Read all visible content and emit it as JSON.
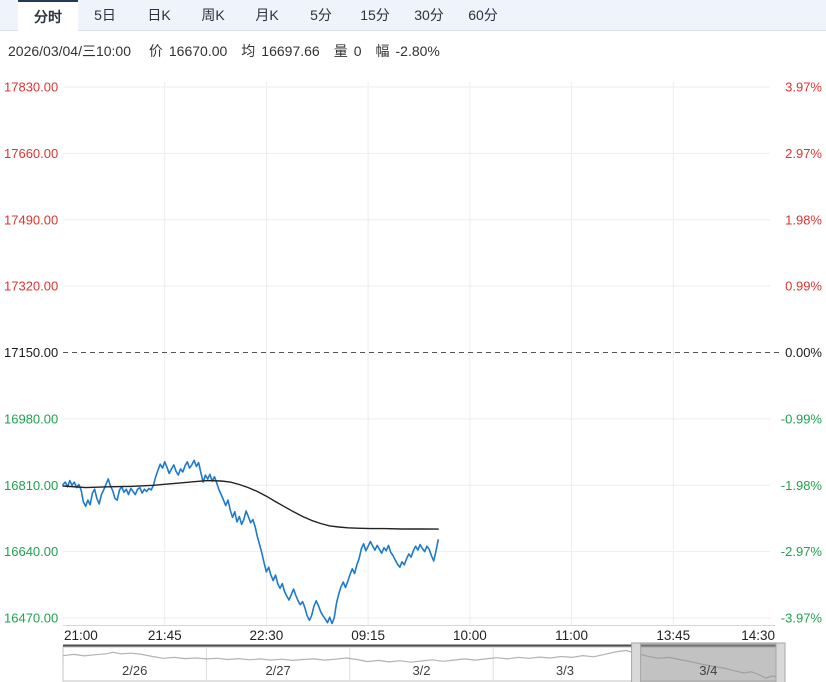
{
  "toolbar": {
    "tabs": [
      {
        "label": "分时",
        "active": true
      },
      {
        "label": "5日",
        "active": false
      },
      {
        "label": "日K",
        "active": false
      },
      {
        "label": "周K",
        "active": false
      },
      {
        "label": "月K",
        "active": false
      },
      {
        "label": "5分",
        "active": false
      },
      {
        "label": "15分",
        "active": false
      },
      {
        "label": "30分",
        "active": false
      },
      {
        "label": "60分",
        "active": false
      }
    ]
  },
  "status_bar": {
    "datetime": "2026/03/04/三10:00",
    "fields": [
      {
        "label": "价",
        "value": "16670.00"
      },
      {
        "label": "均",
        "value": "16697.66"
      },
      {
        "label": "量",
        "value": "0"
      },
      {
        "label": "幅",
        "value": "-2.80%"
      }
    ]
  },
  "chart_data": {
    "type": "line",
    "title": "分时 intraday price chart",
    "prev_close": 17150,
    "current": {
      "time": "10:00",
      "price": 16670.0,
      "avg": 16697.66,
      "volume": 0,
      "change_pct": "-2.80%"
    },
    "y_axis": {
      "price_values": [
        17830,
        17660,
        17490,
        17320,
        17150,
        16980,
        16810,
        16640,
        16470
      ],
      "price_labels": [
        "17830.00",
        "17660.00",
        "17490.00",
        "17320.00",
        "17150.00",
        "16980.00",
        "16810.00",
        "16640.00",
        "16470.00"
      ],
      "percent_labels": [
        "3.97%",
        "2.97%",
        "1.98%",
        "0.99%",
        "0.00%",
        "-0.99%",
        "-1.98%",
        "-2.97%",
        "-3.97%"
      ]
    },
    "x_axis": {
      "tick_labels": [
        "21:00",
        "21:45",
        "22:30",
        "09:15",
        "10:00",
        "11:00",
        "13:45",
        "14:30"
      ],
      "tick_minutes": [
        0,
        45,
        90,
        135,
        180,
        225,
        270,
        315
      ],
      "total_minutes": 315
    },
    "ylim": [
      16470,
      17830
    ],
    "grid": true,
    "colors": {
      "up": "#dd3431",
      "down": "#1fa24d",
      "neutral": "#1a1a1a",
      "price_line": "#1e7ac9",
      "avg_line": "#222222",
      "grid": "#ededf0",
      "dashed_midline": "#555555"
    },
    "series": [
      {
        "name": "price",
        "points": [
          [
            0,
            16812
          ],
          [
            1,
            16818
          ],
          [
            2,
            16806
          ],
          [
            3,
            16822
          ],
          [
            4,
            16810
          ],
          [
            5,
            16818
          ],
          [
            6,
            16804
          ],
          [
            7,
            16812
          ],
          [
            8,
            16798
          ],
          [
            9,
            16768
          ],
          [
            10,
            16756
          ],
          [
            11,
            16772
          ],
          [
            12,
            16760
          ],
          [
            13,
            16790
          ],
          [
            14,
            16800
          ],
          [
            15,
            16776
          ],
          [
            16,
            16762
          ],
          [
            17,
            16786
          ],
          [
            18,
            16798
          ],
          [
            19,
            16812
          ],
          [
            20,
            16826
          ],
          [
            21,
            16808
          ],
          [
            22,
            16796
          ],
          [
            23,
            16776
          ],
          [
            24,
            16772
          ],
          [
            25,
            16798
          ],
          [
            26,
            16806
          ],
          [
            27,
            16792
          ],
          [
            28,
            16800
          ],
          [
            29,
            16786
          ],
          [
            30,
            16802
          ],
          [
            31,
            16794
          ],
          [
            32,
            16786
          ],
          [
            33,
            16800
          ],
          [
            34,
            16804
          ],
          [
            35,
            16790
          ],
          [
            36,
            16800
          ],
          [
            37,
            16794
          ],
          [
            38,
            16802
          ],
          [
            39,
            16798
          ],
          [
            40,
            16810
          ],
          [
            41,
            16832
          ],
          [
            42,
            16848
          ],
          [
            43,
            16864
          ],
          [
            44,
            16854
          ],
          [
            45,
            16870
          ],
          [
            46,
            16856
          ],
          [
            47,
            16840
          ],
          [
            48,
            16852
          ],
          [
            49,
            16862
          ],
          [
            50,
            16846
          ],
          [
            51,
            16836
          ],
          [
            52,
            16852
          ],
          [
            53,
            16844
          ],
          [
            54,
            16860
          ],
          [
            55,
            16870
          ],
          [
            56,
            16854
          ],
          [
            57,
            16862
          ],
          [
            58,
            16874
          ],
          [
            59,
            16858
          ],
          [
            60,
            16868
          ],
          [
            61,
            16842
          ],
          [
            62,
            16818
          ],
          [
            63,
            16836
          ],
          [
            64,
            16826
          ],
          [
            65,
            16838
          ],
          [
            66,
            16820
          ],
          [
            67,
            16832
          ],
          [
            68,
            16816
          ],
          [
            69,
            16798
          ],
          [
            70,
            16786
          ],
          [
            71,
            16772
          ],
          [
            72,
            16758
          ],
          [
            73,
            16772
          ],
          [
            74,
            16746
          ],
          [
            75,
            16728
          ],
          [
            76,
            16742
          ],
          [
            77,
            16716
          ],
          [
            78,
            16730
          ],
          [
            79,
            16710
          ],
          [
            80,
            16722
          ],
          [
            81,
            16744
          ],
          [
            82,
            16730
          ],
          [
            83,
            16714
          ],
          [
            84,
            16722
          ],
          [
            85,
            16704
          ],
          [
            86,
            16678
          ],
          [
            87,
            16658
          ],
          [
            88,
            16636
          ],
          [
            89,
            16610
          ],
          [
            90,
            16588
          ],
          [
            91,
            16600
          ],
          [
            92,
            16580
          ],
          [
            93,
            16566
          ],
          [
            94,
            16580
          ],
          [
            95,
            16558
          ],
          [
            96,
            16546
          ],
          [
            97,
            16558
          ],
          [
            98,
            16538
          ],
          [
            99,
            16526
          ],
          [
            100,
            16516
          ],
          [
            101,
            16530
          ],
          [
            102,
            16544
          ],
          [
            103,
            16528
          ],
          [
            104,
            16514
          ],
          [
            105,
            16504
          ],
          [
            106,
            16512
          ],
          [
            107,
            16496
          ],
          [
            108,
            16476
          ],
          [
            109,
            16464
          ],
          [
            110,
            16476
          ],
          [
            111,
            16500
          ],
          [
            112,
            16514
          ],
          [
            113,
            16502
          ],
          [
            114,
            16486
          ],
          [
            115,
            16476
          ],
          [
            116,
            16468
          ],
          [
            117,
            16458
          ],
          [
            118,
            16472
          ],
          [
            119,
            16456
          ],
          [
            120,
            16470
          ],
          [
            121,
            16508
          ],
          [
            122,
            16532
          ],
          [
            123,
            16550
          ],
          [
            124,
            16562
          ],
          [
            125,
            16548
          ],
          [
            126,
            16564
          ],
          [
            127,
            16582
          ],
          [
            128,
            16596
          ],
          [
            129,
            16584
          ],
          [
            130,
            16606
          ],
          [
            131,
            16622
          ],
          [
            132,
            16648
          ],
          [
            133,
            16660
          ],
          [
            134,
            16642
          ],
          [
            135,
            16654
          ],
          [
            136,
            16666
          ],
          [
            137,
            16654
          ],
          [
            138,
            16644
          ],
          [
            139,
            16656
          ],
          [
            140,
            16646
          ],
          [
            141,
            16636
          ],
          [
            142,
            16650
          ],
          [
            143,
            16642
          ],
          [
            144,
            16656
          ],
          [
            145,
            16638
          ],
          [
            146,
            16630
          ],
          [
            147,
            16618
          ],
          [
            148,
            16608
          ],
          [
            149,
            16600
          ],
          [
            150,
            16614
          ],
          [
            151,
            16606
          ],
          [
            152,
            16622
          ],
          [
            153,
            16634
          ],
          [
            154,
            16626
          ],
          [
            155,
            16642
          ],
          [
            156,
            16654
          ],
          [
            157,
            16644
          ],
          [
            158,
            16658
          ],
          [
            159,
            16648
          ],
          [
            160,
            16640
          ],
          [
            161,
            16654
          ],
          [
            162,
            16646
          ],
          [
            163,
            16630
          ],
          [
            164,
            16616
          ],
          [
            165,
            16642
          ],
          [
            166,
            16670
          ]
        ]
      },
      {
        "name": "average",
        "points": [
          [
            0,
            16808
          ],
          [
            10,
            16804
          ],
          [
            20,
            16806
          ],
          [
            30,
            16807
          ],
          [
            40,
            16810
          ],
          [
            46,
            16813
          ],
          [
            52,
            16816
          ],
          [
            58,
            16819
          ],
          [
            64,
            16822
          ],
          [
            70,
            16821
          ],
          [
            74,
            16818
          ],
          [
            78,
            16812
          ],
          [
            82,
            16804
          ],
          [
            86,
            16794
          ],
          [
            90,
            16782
          ],
          [
            94,
            16768
          ],
          [
            98,
            16755
          ],
          [
            102,
            16742
          ],
          [
            106,
            16730
          ],
          [
            110,
            16720
          ],
          [
            114,
            16712
          ],
          [
            118,
            16706
          ],
          [
            122,
            16703
          ],
          [
            126,
            16701
          ],
          [
            130,
            16700
          ],
          [
            136,
            16699
          ],
          [
            142,
            16699
          ],
          [
            150,
            16698
          ],
          [
            158,
            16698
          ],
          [
            166,
            16697.7
          ]
        ]
      }
    ]
  },
  "navigator": {
    "dates": [
      "2/26",
      "2/27",
      "3/2",
      "3/3",
      "3/4"
    ],
    "selected_date": "3/4",
    "selected_index": 4,
    "sparkline_color": "#b3b3b3",
    "sparkline": [
      [
        0,
        0.22
      ],
      [
        0.015,
        0.18
      ],
      [
        0.03,
        0.23
      ],
      [
        0.045,
        0.19
      ],
      [
        0.06,
        0.16
      ],
      [
        0.07,
        0.11
      ],
      [
        0.08,
        0.16
      ],
      [
        0.095,
        0.14
      ],
      [
        0.11,
        0.18
      ],
      [
        0.125,
        0.25
      ],
      [
        0.14,
        0.31
      ],
      [
        0.155,
        0.28
      ],
      [
        0.17,
        0.32
      ],
      [
        0.185,
        0.3
      ],
      [
        0.2,
        0.33
      ],
      [
        0.215,
        0.31
      ],
      [
        0.23,
        0.35
      ],
      [
        0.245,
        0.32
      ],
      [
        0.26,
        0.36
      ],
      [
        0.275,
        0.33
      ],
      [
        0.29,
        0.37
      ],
      [
        0.305,
        0.34
      ],
      [
        0.32,
        0.38
      ],
      [
        0.335,
        0.35
      ],
      [
        0.35,
        0.33
      ],
      [
        0.365,
        0.37
      ],
      [
        0.38,
        0.34
      ],
      [
        0.395,
        0.3
      ],
      [
        0.41,
        0.35
      ],
      [
        0.425,
        0.42
      ],
      [
        0.44,
        0.38
      ],
      [
        0.455,
        0.43
      ],
      [
        0.47,
        0.39
      ],
      [
        0.485,
        0.44
      ],
      [
        0.5,
        0.4
      ],
      [
        0.515,
        0.36
      ],
      [
        0.53,
        0.41
      ],
      [
        0.545,
        0.37
      ],
      [
        0.56,
        0.33
      ],
      [
        0.575,
        0.37
      ],
      [
        0.59,
        0.33
      ],
      [
        0.605,
        0.29
      ],
      [
        0.62,
        0.33
      ],
      [
        0.635,
        0.28
      ],
      [
        0.65,
        0.31
      ],
      [
        0.665,
        0.27
      ],
      [
        0.68,
        0.3
      ],
      [
        0.695,
        0.25
      ],
      [
        0.71,
        0.28
      ],
      [
        0.725,
        0.22
      ],
      [
        0.74,
        0.26
      ],
      [
        0.755,
        0.18
      ],
      [
        0.77,
        0.1
      ],
      [
        0.785,
        0.05
      ],
      [
        0.8,
        0.14
      ],
      [
        0.815,
        0.24
      ],
      [
        0.83,
        0.31
      ],
      [
        0.845,
        0.28
      ],
      [
        0.86,
        0.35
      ],
      [
        0.875,
        0.42
      ],
      [
        0.89,
        0.5
      ],
      [
        0.905,
        0.57
      ],
      [
        0.92,
        0.63
      ],
      [
        0.935,
        0.72
      ],
      [
        0.95,
        0.8
      ],
      [
        0.96,
        0.76
      ],
      [
        0.97,
        0.85
      ],
      [
        0.98,
        0.97
      ],
      [
        0.99,
        0.9
      ],
      [
        1,
        0.95
      ]
    ]
  }
}
